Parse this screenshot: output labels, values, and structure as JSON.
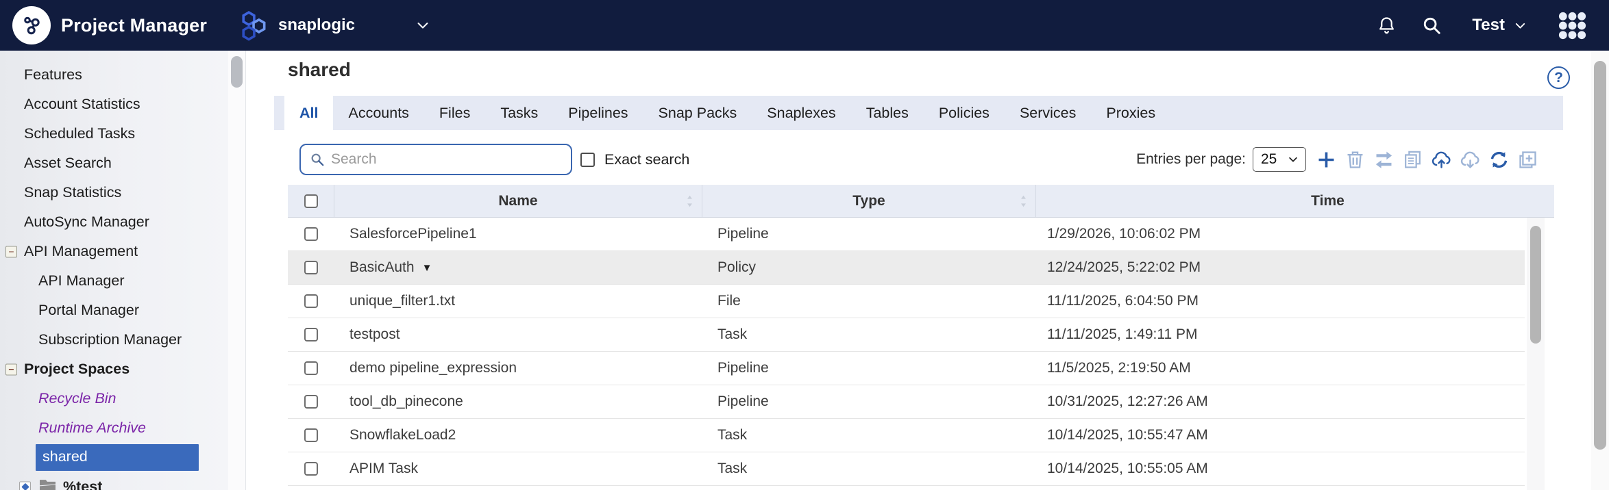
{
  "colors": {
    "topbar_bg": "#111c3e",
    "selected_blue": "#3a6abc",
    "link_purple": "#7b24a8",
    "icon_dark": "#2a5ca8",
    "icon_light": "#9db4d6",
    "tab_active": "#1f55a8",
    "tab_bar_bg": "#e5e9f4",
    "table_header_bg": "#e8ecf5"
  },
  "topbar": {
    "app_title": "Project Manager",
    "org_name": "snaplogic",
    "user_name": "Test",
    "icons": [
      "snaplogic-logo",
      "org-hexagons",
      "bell",
      "search",
      "user-chevron",
      "apps-grid"
    ]
  },
  "sidebar": {
    "items": [
      {
        "label": "Features",
        "indent": 1
      },
      {
        "label": "Account Statistics",
        "indent": 1
      },
      {
        "label": "Scheduled Tasks",
        "indent": 1
      },
      {
        "label": "Asset Search",
        "indent": 1
      },
      {
        "label": "Snap Statistics",
        "indent": 1
      },
      {
        "label": "AutoSync Manager",
        "indent": 1
      },
      {
        "label": "API Management",
        "indent": 1,
        "expander": "minus"
      },
      {
        "label": "API Manager",
        "indent": 2
      },
      {
        "label": "Portal Manager",
        "indent": 2
      },
      {
        "label": "Subscription Manager",
        "indent": 2
      },
      {
        "label": "Project Spaces",
        "indent": 1,
        "bold": true,
        "expander": "minus"
      },
      {
        "label": "Recycle Bin",
        "indent": 2,
        "italic": true,
        "purple": true
      },
      {
        "label": "Runtime Archive",
        "indent": 2,
        "italic": true,
        "purple": true
      },
      {
        "label": "shared",
        "indent": 2,
        "selected": true
      },
      {
        "label": "%test",
        "indent": 2,
        "bold": true,
        "expander": "diamond",
        "icon": "folder"
      }
    ]
  },
  "main": {
    "title": "shared",
    "help_glyph": "?",
    "tabs": [
      "All",
      "Accounts",
      "Files",
      "Tasks",
      "Pipelines",
      "Snap Packs",
      "Snaplexes",
      "Tables",
      "Policies",
      "Services",
      "Proxies"
    ],
    "active_tab": 0,
    "search": {
      "placeholder": "Search",
      "exact_label": "Exact search",
      "exact_checked": false
    },
    "entries": {
      "label": "Entries per page:",
      "value": "25"
    },
    "toolbar": [
      {
        "name": "create-icon",
        "glyph": "plus",
        "color": "icon_dark"
      },
      {
        "name": "delete-icon",
        "glyph": "trash",
        "color": "icon_light"
      },
      {
        "name": "move-icon",
        "glyph": "transfer",
        "color": "icon_light"
      },
      {
        "name": "copy-icon",
        "glyph": "copy",
        "color": "icon_light"
      },
      {
        "name": "import-icon",
        "glyph": "cloud-up",
        "color": "icon_dark"
      },
      {
        "name": "export-icon",
        "glyph": "cloud-down",
        "color": "icon_light"
      },
      {
        "name": "refresh-icon",
        "glyph": "refresh",
        "color": "icon_dark"
      },
      {
        "name": "new-window-icon",
        "glyph": "add-window",
        "color": "icon_light"
      }
    ],
    "table": {
      "columns": [
        {
          "label": "Name",
          "sortable": true
        },
        {
          "label": "Type",
          "sortable": true
        },
        {
          "label": "Time",
          "sortable": false
        }
      ],
      "rows": [
        {
          "name": "SalesforcePipeline1",
          "type": "Pipeline",
          "time": "1/29/2026, 10:06:02 PM"
        },
        {
          "name": "BasicAuth",
          "caret": "▼",
          "type": "Policy",
          "time": "12/24/2025, 5:22:02 PM",
          "highlighted": true
        },
        {
          "name": "unique_filter1.txt",
          "type": "File",
          "time": "11/11/2025, 6:04:50 PM"
        },
        {
          "name": "testpost",
          "type": "Task",
          "time": "11/11/2025, 1:49:11 PM"
        },
        {
          "name": "demo pipeline_expression",
          "type": "Pipeline",
          "time": "11/5/2025, 2:19:50 AM"
        },
        {
          "name": "tool_db_pinecone",
          "type": "Pipeline",
          "time": "10/31/2025, 12:27:26 AM"
        },
        {
          "name": "SnowflakeLoad2",
          "type": "Task",
          "time": "10/14/2025, 10:55:47 AM"
        },
        {
          "name": "APIM Task",
          "type": "Task",
          "time": "10/14/2025, 10:55:05 AM"
        }
      ]
    }
  }
}
